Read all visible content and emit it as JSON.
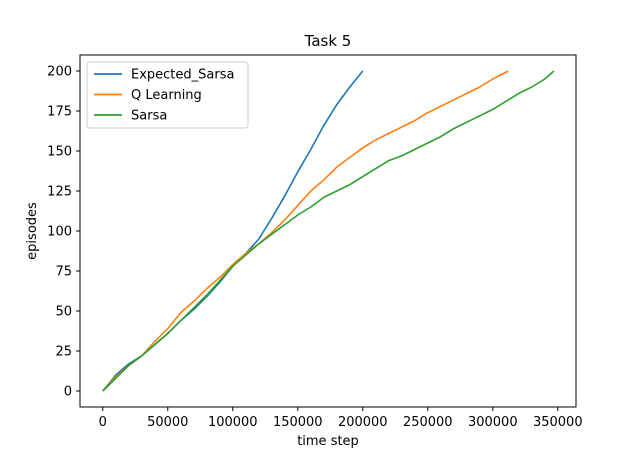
{
  "chart_data": {
    "type": "line",
    "title": "Task 5",
    "xlabel": "time step",
    "ylabel": "episodes",
    "xlim": [
      -17500,
      364000
    ],
    "ylim": [
      -10,
      210
    ],
    "xticks": [
      0,
      50000,
      100000,
      150000,
      200000,
      250000,
      300000,
      350000
    ],
    "xtick_labels": [
      "0",
      "50000",
      "100000",
      "150000",
      "200000",
      "250000",
      "300000",
      "350000"
    ],
    "yticks": [
      0,
      25,
      50,
      75,
      100,
      125,
      150,
      175,
      200
    ],
    "ytick_labels": [
      "0",
      "25",
      "50",
      "75",
      "100",
      "125",
      "150",
      "175",
      "200"
    ],
    "grid": false,
    "legend_position": "top-left",
    "series": [
      {
        "name": "Expected_Sarsa",
        "color": "#1f77b4",
        "x": [
          0,
          10000,
          20000,
          30000,
          40000,
          50000,
          60000,
          70000,
          80000,
          90000,
          100000,
          110000,
          120000,
          130000,
          140000,
          150000,
          160000,
          170000,
          180000,
          190000,
          200000
        ],
        "y": [
          0,
          10,
          17,
          22,
          29,
          36,
          44,
          51,
          59,
          68,
          78,
          86,
          95,
          108,
          122,
          137,
          151,
          166,
          179,
          190,
          200
        ]
      },
      {
        "name": "Q Learning",
        "color": "#ff7f0e",
        "x": [
          0,
          10000,
          20000,
          30000,
          40000,
          50000,
          60000,
          70000,
          80000,
          90000,
          100000,
          110000,
          120000,
          130000,
          140000,
          150000,
          160000,
          170000,
          180000,
          190000,
          200000,
          210000,
          220000,
          230000,
          240000,
          250000,
          260000,
          270000,
          280000,
          290000,
          300000,
          312000
        ],
        "y": [
          0,
          9,
          16,
          22,
          31,
          39,
          49,
          56,
          64,
          71,
          79,
          86,
          92,
          99,
          107,
          116,
          125,
          132,
          140,
          146,
          152,
          157,
          161,
          165,
          169,
          174,
          178,
          182,
          186,
          190,
          195,
          200
        ]
      },
      {
        "name": "Sarsa",
        "color": "#2ca02c",
        "x": [
          0,
          10000,
          20000,
          30000,
          40000,
          50000,
          60000,
          70000,
          80000,
          90000,
          100000,
          110000,
          120000,
          130000,
          140000,
          150000,
          160000,
          170000,
          180000,
          190000,
          200000,
          210000,
          220000,
          230000,
          240000,
          250000,
          260000,
          270000,
          280000,
          290000,
          300000,
          310000,
          320000,
          330000,
          340000,
          347000
        ],
        "y": [
          0,
          8,
          16,
          22,
          29,
          36,
          44,
          52,
          60,
          69,
          78,
          85,
          92,
          98,
          104,
          110,
          115,
          121,
          125,
          129,
          134,
          139,
          144,
          147,
          151,
          155,
          159,
          164,
          168,
          172,
          176,
          181,
          186,
          190,
          195,
          200
        ]
      }
    ]
  }
}
